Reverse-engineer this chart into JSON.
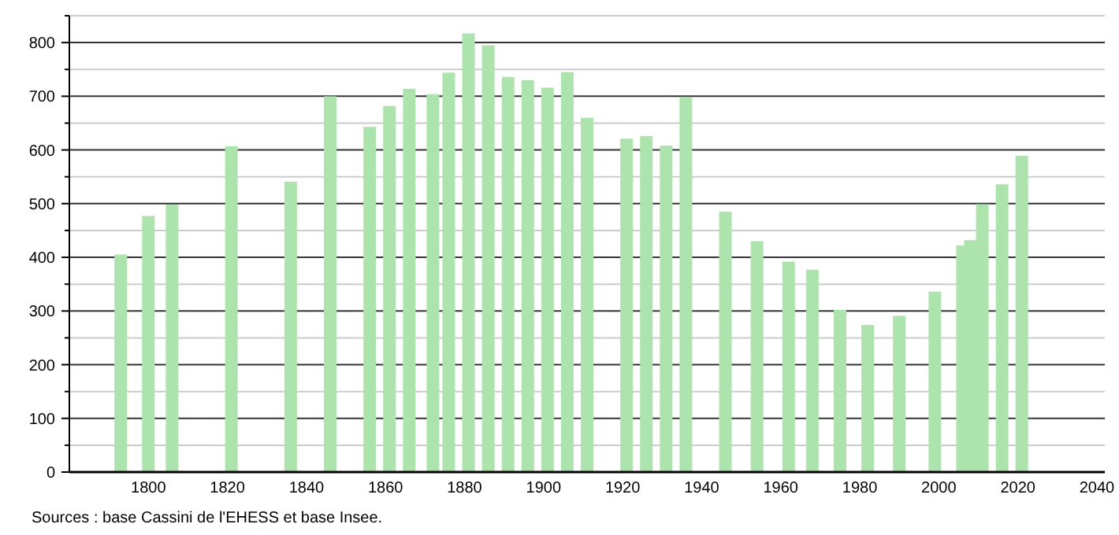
{
  "chart_data": {
    "type": "bar",
    "x": [
      1793,
      1800,
      1806,
      1821,
      1836,
      1846,
      1856,
      1861,
      1866,
      1872,
      1876,
      1881,
      1886,
      1891,
      1896,
      1901,
      1906,
      1911,
      1921,
      1926,
      1931,
      1936,
      1946,
      1954,
      1962,
      1968,
      1975,
      1982,
      1990,
      1999,
      2006,
      2008,
      2011,
      2016,
      2021
    ],
    "values": [
      405,
      477,
      498,
      607,
      541,
      700,
      643,
      682,
      714,
      704,
      744,
      817,
      795,
      736,
      730,
      716,
      745,
      660,
      621,
      626,
      608,
      699,
      485,
      430,
      392,
      377,
      302,
      274,
      291,
      336,
      422,
      432,
      499,
      536,
      589
    ],
    "color": "#ade3ad",
    "xlim": [
      1780,
      2042
    ],
    "xticks": [
      1800,
      1820,
      1840,
      1860,
      1880,
      1900,
      1920,
      1940,
      1960,
      1980,
      2000,
      2020,
      2040
    ],
    "ylim": [
      0,
      850
    ],
    "yticks": [
      0,
      {
        "value": 50,
        "label": null
      },
      100,
      {
        "value": 150,
        "label": null
      },
      200,
      {
        "value": 250,
        "label": null
      },
      300,
      {
        "value": 350,
        "label": null
      },
      400,
      {
        "value": 450,
        "label": null
      },
      500,
      {
        "value": 550,
        "label": null
      },
      600,
      {
        "value": 650,
        "label": null
      },
      700,
      {
        "value": 750,
        "label": null
      },
      800,
      {
        "value": 850,
        "label": null
      }
    ],
    "grid": true,
    "annotations": [
      "Sources : base Cassini de l'EHESS et base Insee."
    ]
  }
}
